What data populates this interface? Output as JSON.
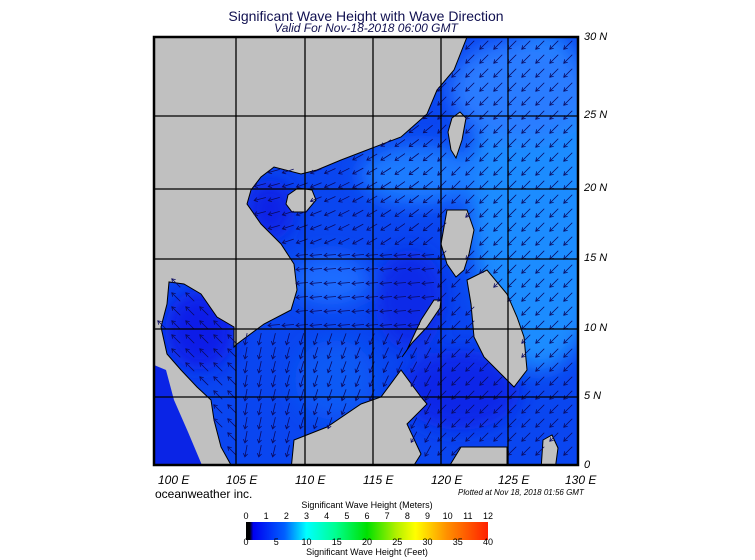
{
  "header": {
    "title": "Significant Wave Height with Wave Direction",
    "subtitle": "Valid For Nov-18-2018 06:00 GMT"
  },
  "map": {
    "region": "South China Sea / Philippines",
    "lon_range": [
      100,
      130
    ],
    "lat_range": [
      0,
      30
    ],
    "lat_labels": [
      "30 N",
      "25 N",
      "20 N",
      "15 N",
      "10 N",
      "5 N",
      "0"
    ],
    "lon_labels": [
      "100 E",
      "105 E",
      "110 E",
      "115 E",
      "120 E",
      "125 E",
      "130 E"
    ],
    "colors": {
      "land": "#c0c0c0",
      "sea_dark": "#0a1ee8",
      "sea_mid": "#0a50f2",
      "sea_light": "#1e8cff",
      "arrow": "#0a0a60"
    },
    "arrow_icon": "wave-direction-arrow"
  },
  "footer": {
    "brand": "oceanweather inc.",
    "plotted": "Plotted at Nov 18, 2018 01:56 GMT"
  },
  "colorbar": {
    "meters_title": "Significant Wave Height (Meters)",
    "feet_title": "Significant Wave Height (Feet)",
    "meters_ticks": [
      "0",
      "1",
      "2",
      "3",
      "4",
      "5",
      "6",
      "7",
      "8",
      "9",
      "10",
      "11",
      "12"
    ],
    "feet_ticks": [
      "0",
      "5",
      "10",
      "15",
      "20",
      "25",
      "30",
      "35",
      "40"
    ],
    "colors": [
      "#000000",
      "#0000f0",
      "#0060ff",
      "#00ffff",
      "#00ff90",
      "#00e000",
      "#b0f000",
      "#ffff00",
      "#ff9000",
      "#ff2000"
    ]
  }
}
